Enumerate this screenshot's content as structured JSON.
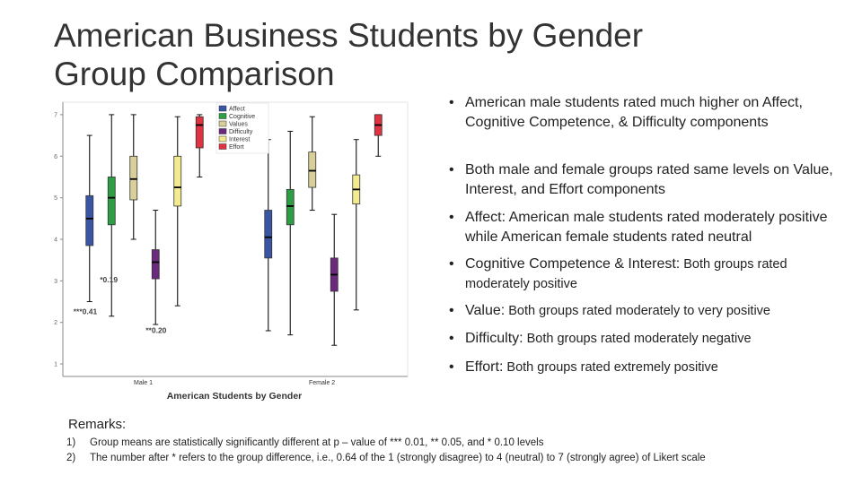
{
  "title_lines": [
    "American Business Students by Gender",
    "Group Comparison"
  ],
  "bullets": [
    {
      "main": "American male students rated much higher on Affect, Cognitive Competence, & Difficulty components",
      "small": ""
    },
    {
      "main": "Both male and female groups rated same levels on Value, Interest, and Effort components",
      "small": ""
    },
    {
      "main": "Affect: American male students rated moderately positive while American female students rated neutral",
      "small": ""
    },
    {
      "main": "Cognitive Competence & Interest:",
      "small": " Both groups rated moderately positive"
    },
    {
      "main": "Value:",
      "small": " Both groups rated moderately to very positive"
    },
    {
      "main": "Difficulty:",
      "small": " Both groups rated moderately negative"
    },
    {
      "main": "Effort:",
      "small": "  Both groups rated extremely positive"
    }
  ],
  "remarks": {
    "title": "Remarks:",
    "items": [
      {
        "num": "1)",
        "text": "Group means are statistically significantly different at p – value of *** 0.01,  ** 0.05, and * 0.10 levels"
      },
      {
        "num": "2)",
        "text": "The number after * refers to the group difference, i.e., 0.64 of the 1 (strongly disagree) to 4 (neutral) to 7 (strongly agree) of Likert scale"
      }
    ]
  },
  "chart_data": {
    "type": "box",
    "xlabel": "American Students by Gender",
    "ylabel": "",
    "ylim": [
      0.7,
      7.3
    ],
    "yticks": [
      1,
      2,
      3,
      4,
      5,
      6,
      7
    ],
    "categories": [
      "Male 1",
      "Female 2"
    ],
    "legend_position": "top",
    "series": [
      {
        "name": "Affect",
        "color": "#3a55a4",
        "boxes": [
          {
            "min": 2.5,
            "q1": 3.85,
            "median": 4.5,
            "q3": 5.05,
            "max": 6.5
          },
          {
            "min": 1.8,
            "q1": 3.55,
            "median": 4.05,
            "q3": 4.7,
            "max": 6.4
          }
        ]
      },
      {
        "name": "Cognitive",
        "color": "#2e9e45",
        "boxes": [
          {
            "min": 2.15,
            "q1": 4.35,
            "median": 5.0,
            "q3": 5.5,
            "max": 7.0
          },
          {
            "min": 1.7,
            "q1": 4.35,
            "median": 4.8,
            "q3": 5.2,
            "max": 6.6
          }
        ]
      },
      {
        "name": "Values",
        "color": "#d8d098",
        "boxes": [
          {
            "min": 4.0,
            "q1": 4.95,
            "median": 5.45,
            "q3": 6.0,
            "max": 7.0
          },
          {
            "min": 4.7,
            "q1": 5.25,
            "median": 5.65,
            "q3": 6.1,
            "max": 6.95
          }
        ]
      },
      {
        "name": "Difficulty",
        "color": "#6b2a7c",
        "boxes": [
          {
            "min": 1.95,
            "q1": 3.05,
            "median": 3.45,
            "q3": 3.75,
            "max": 4.7
          },
          {
            "min": 1.45,
            "q1": 2.75,
            "median": 3.15,
            "q3": 3.55,
            "max": 4.6
          }
        ]
      },
      {
        "name": "Interest",
        "color": "#f3eb8f",
        "boxes": [
          {
            "min": 2.4,
            "q1": 4.8,
            "median": 5.25,
            "q3": 6.0,
            "max": 6.95
          },
          {
            "min": 2.3,
            "q1": 4.85,
            "median": 5.2,
            "q3": 5.55,
            "max": 6.4
          }
        ]
      },
      {
        "name": "Effort",
        "color": "#e03341",
        "boxes": [
          {
            "min": 5.5,
            "q1": 6.2,
            "median": 6.75,
            "q3": 6.95,
            "max": 7.0
          },
          {
            "min": 6.0,
            "q1": 6.5,
            "median": 6.75,
            "q3": 7.0,
            "max": 7.0
          }
        ]
      }
    ],
    "annotations": [
      {
        "text": "*0.19",
        "series": "Cognitive",
        "group": 0
      },
      {
        "text": "***0.41",
        "series": "Affect",
        "group": 0
      },
      {
        "text": "**0.20",
        "series": "Difficulty",
        "group": 0
      }
    ]
  }
}
